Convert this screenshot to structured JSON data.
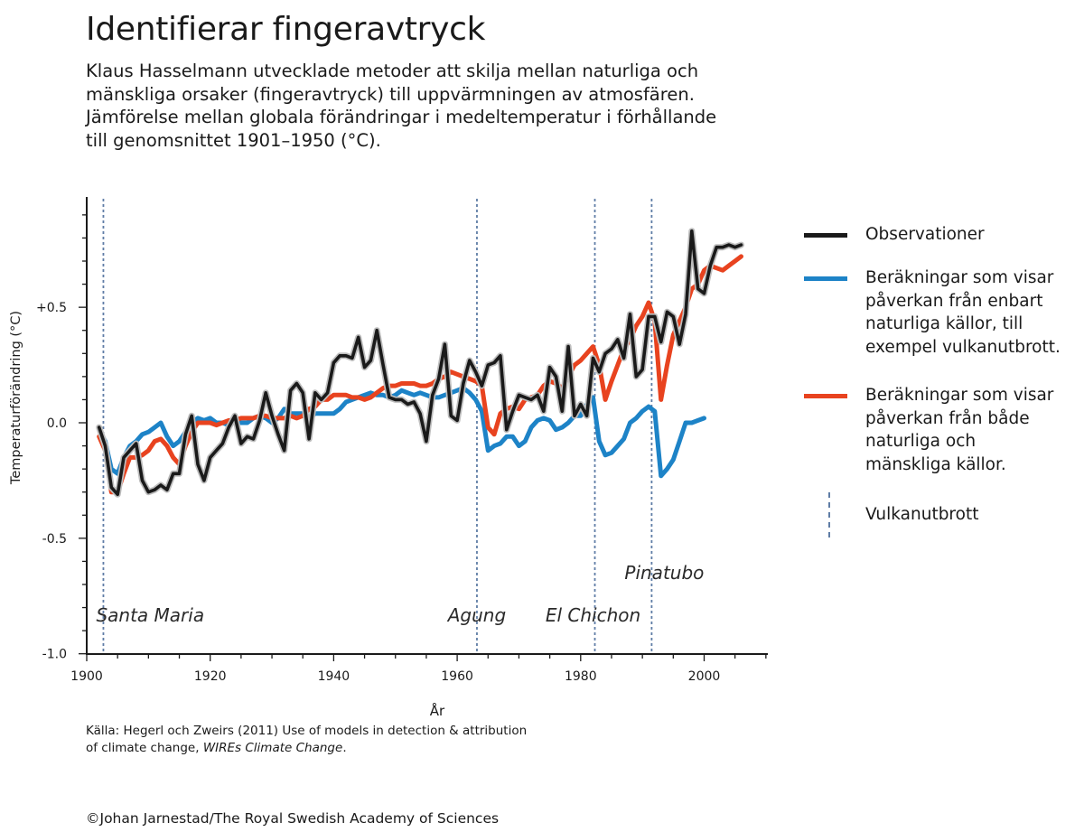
{
  "title": "Identifierar fingeravtryck",
  "subtitle_lines": [
    "Klaus Hasselmann utvecklade metoder att skilja mellan naturliga och",
    "mänskliga orsaker (fingeravtryck) till uppvärmningen av atmosfären.",
    "Jämförelse mellan globala förändringar i medeltemperatur i förhållande",
    "till genomsnittet 1901–1950 (°C)."
  ],
  "chart_data": {
    "type": "line",
    "ylabel": "Temperaturförändring (°C)",
    "xlabel": "År",
    "xlim": [
      1900,
      2011
    ],
    "ylim": [
      -1.0,
      0.9
    ],
    "x_ticks": [
      1900,
      1920,
      1940,
      1960,
      1980,
      2000
    ],
    "x_tick_labels": [
      "1900",
      "1920",
      "1940",
      "1960",
      "1980",
      "2000"
    ],
    "y_ticks": [
      0.5,
      0.0,
      -0.5,
      -1.0
    ],
    "y_tick_labels": [
      "+0.5",
      "0.0",
      "-0.5",
      "-1.0"
    ],
    "series": [
      {
        "name": "Observationer",
        "color": "#1a1a1a",
        "x": [
          1902,
          1903,
          1904,
          1905,
          1906,
          1907,
          1908,
          1909,
          1910,
          1911,
          1912,
          1913,
          1914,
          1915,
          1916,
          1917,
          1918,
          1919,
          1920,
          1921,
          1922,
          1923,
          1924,
          1925,
          1926,
          1927,
          1928,
          1929,
          1930,
          1931,
          1932,
          1933,
          1934,
          1935,
          1936,
          1937,
          1938,
          1939,
          1940,
          1941,
          1942,
          1943,
          1944,
          1945,
          1946,
          1947,
          1948,
          1949,
          1950,
          1951,
          1952,
          1953,
          1954,
          1955,
          1956,
          1957,
          1958,
          1959,
          1960,
          1961,
          1962,
          1963,
          1964,
          1965,
          1966,
          1967,
          1968,
          1969,
          1970,
          1971,
          1972,
          1973,
          1974,
          1975,
          1976,
          1977,
          1978,
          1979,
          1980,
          1981,
          1982,
          1983,
          1984,
          1985,
          1986,
          1987,
          1988,
          1989,
          1990,
          1991,
          1992,
          1993,
          1994,
          1995,
          1996,
          1997,
          1998,
          1999,
          2000,
          2001,
          2002,
          2003,
          2004,
          2005,
          2006
        ],
        "values": [
          -0.02,
          -0.1,
          -0.28,
          -0.31,
          -0.15,
          -0.12,
          -0.09,
          -0.25,
          -0.3,
          -0.29,
          -0.27,
          -0.29,
          -0.22,
          -0.22,
          -0.05,
          0.03,
          -0.18,
          -0.25,
          -0.15,
          -0.12,
          -0.09,
          -0.02,
          0.03,
          -0.09,
          -0.06,
          -0.07,
          0.01,
          0.13,
          0.03,
          -0.05,
          -0.12,
          0.14,
          0.17,
          0.13,
          -0.07,
          0.13,
          0.1,
          0.13,
          0.26,
          0.29,
          0.29,
          0.28,
          0.37,
          0.24,
          0.27,
          0.4,
          0.25,
          0.11,
          0.1,
          0.1,
          0.08,
          0.09,
          0.04,
          -0.08,
          0.12,
          0.19,
          0.34,
          0.03,
          0.01,
          0.17,
          0.27,
          0.22,
          0.16,
          0.25,
          0.26,
          0.29,
          -0.03,
          0.05,
          0.12,
          0.11,
          0.1,
          0.12,
          0.05,
          0.24,
          0.2,
          0.05,
          0.33,
          0.03,
          0.08,
          0.03,
          0.28,
          0.22,
          0.3,
          0.32,
          0.36,
          0.28,
          0.47,
          0.2,
          0.23,
          0.46,
          0.46,
          0.35,
          0.48,
          0.46,
          0.34,
          0.47,
          0.83,
          0.58,
          0.56,
          0.68,
          0.76,
          0.76,
          0.77,
          0.76,
          0.77
        ]
      },
      {
        "name": "Beräkningar som visar påverkan från enbart naturliga källor, till exempel vulkanutbrott.",
        "color": "#1d83c7",
        "x": [
          1902,
          1903,
          1904,
          1905,
          1906,
          1907,
          1908,
          1909,
          1910,
          1911,
          1912,
          1913,
          1914,
          1915,
          1916,
          1917,
          1918,
          1919,
          1920,
          1921,
          1922,
          1923,
          1924,
          1925,
          1926,
          1927,
          1928,
          1929,
          1930,
          1931,
          1932,
          1933,
          1934,
          1935,
          1936,
          1937,
          1938,
          1939,
          1940,
          1941,
          1942,
          1943,
          1944,
          1945,
          1946,
          1947,
          1948,
          1949,
          1950,
          1951,
          1952,
          1953,
          1954,
          1955,
          1956,
          1957,
          1958,
          1959,
          1960,
          1961,
          1962,
          1963,
          1964,
          1965,
          1966,
          1967,
          1968,
          1969,
          1970,
          1971,
          1972,
          1973,
          1974,
          1975,
          1976,
          1977,
          1978,
          1979,
          1980,
          1981,
          1982,
          1983,
          1984,
          1985,
          1986,
          1987,
          1988,
          1989,
          1990,
          1991,
          1992,
          1993,
          1994,
          1995,
          1996,
          1997,
          1998,
          1999,
          2000
        ],
        "values": [
          -0.03,
          -0.08,
          -0.2,
          -0.22,
          -0.15,
          -0.1,
          -0.08,
          -0.05,
          -0.04,
          -0.02,
          0.0,
          -0.06,
          -0.1,
          -0.08,
          -0.04,
          0.0,
          0.02,
          0.01,
          0.02,
          0.0,
          0.0,
          -0.01,
          0.01,
          0.0,
          0.0,
          0.02,
          0.03,
          0.02,
          0.0,
          0.02,
          0.06,
          0.04,
          0.04,
          0.04,
          0.02,
          0.04,
          0.04,
          0.04,
          0.04,
          0.06,
          0.09,
          0.1,
          0.11,
          0.12,
          0.13,
          0.12,
          0.12,
          0.11,
          0.12,
          0.14,
          0.13,
          0.12,
          0.13,
          0.12,
          0.11,
          0.11,
          0.12,
          0.13,
          0.14,
          0.15,
          0.13,
          0.1,
          0.05,
          -0.12,
          -0.1,
          -0.09,
          -0.06,
          -0.06,
          -0.1,
          -0.08,
          -0.02,
          0.01,
          0.02,
          0.01,
          -0.03,
          -0.02,
          0.0,
          0.03,
          0.03,
          0.08,
          0.11,
          -0.08,
          -0.14,
          -0.13,
          -0.1,
          -0.07,
          0.0,
          0.02,
          0.05,
          0.07,
          0.05,
          -0.23,
          -0.2,
          -0.16,
          -0.08,
          0.0,
          0.0,
          0.01,
          0.02
        ]
      },
      {
        "name": "Beräkningar som visar påverkan från både naturliga och mänskliga källor.",
        "color": "#e8431f",
        "x": [
          1902,
          1903,
          1904,
          1905,
          1906,
          1907,
          1908,
          1909,
          1910,
          1911,
          1912,
          1913,
          1914,
          1915,
          1916,
          1917,
          1918,
          1919,
          1920,
          1921,
          1922,
          1923,
          1924,
          1925,
          1926,
          1927,
          1928,
          1929,
          1930,
          1931,
          1932,
          1933,
          1934,
          1935,
          1936,
          1937,
          1938,
          1939,
          1940,
          1941,
          1942,
          1943,
          1944,
          1945,
          1946,
          1947,
          1948,
          1949,
          1950,
          1951,
          1952,
          1953,
          1954,
          1955,
          1956,
          1957,
          1958,
          1959,
          1960,
          1961,
          1962,
          1963,
          1964,
          1965,
          1966,
          1967,
          1968,
          1969,
          1970,
          1971,
          1972,
          1973,
          1974,
          1975,
          1976,
          1977,
          1978,
          1979,
          1980,
          1981,
          1982,
          1983,
          1984,
          1985,
          1986,
          1987,
          1988,
          1989,
          1990,
          1991,
          1992,
          1993,
          1994,
          1995,
          1996,
          1997,
          1998,
          1999,
          2000,
          2001,
          2002,
          2003,
          2004,
          2005,
          2006
        ],
        "values": [
          -0.06,
          -0.12,
          -0.3,
          -0.3,
          -0.22,
          -0.15,
          -0.15,
          -0.14,
          -0.12,
          -0.08,
          -0.07,
          -0.1,
          -0.15,
          -0.18,
          -0.1,
          -0.04,
          0.0,
          0.0,
          0.0,
          -0.01,
          0.0,
          0.01,
          0.01,
          0.02,
          0.02,
          0.02,
          0.03,
          0.03,
          0.02,
          0.02,
          0.02,
          0.03,
          0.02,
          0.03,
          0.06,
          0.07,
          0.1,
          0.1,
          0.12,
          0.12,
          0.12,
          0.11,
          0.11,
          0.1,
          0.11,
          0.13,
          0.15,
          0.16,
          0.16,
          0.17,
          0.17,
          0.17,
          0.16,
          0.16,
          0.17,
          0.19,
          0.2,
          0.22,
          0.21,
          0.2,
          0.19,
          0.18,
          0.16,
          -0.02,
          -0.05,
          0.04,
          0.06,
          0.07,
          0.06,
          0.1,
          0.11,
          0.12,
          0.16,
          0.18,
          0.17,
          0.15,
          0.2,
          0.25,
          0.27,
          0.3,
          0.33,
          0.25,
          0.1,
          0.18,
          0.25,
          0.32,
          0.36,
          0.42,
          0.46,
          0.52,
          0.44,
          0.1,
          0.25,
          0.38,
          0.44,
          0.5,
          0.58,
          0.6,
          0.66,
          0.68,
          0.67,
          0.66,
          0.68,
          0.7,
          0.72
        ]
      }
    ],
    "volcanoes": [
      {
        "name": "Santa Maria",
        "year": 1902.7
      },
      {
        "name": "Agung",
        "year": 1963.2
      },
      {
        "name": "El Chichon",
        "year": 1982.3
      },
      {
        "name": "Pinatubo",
        "year": 1991.5
      }
    ],
    "grid": false,
    "legend_position": "right"
  },
  "legend": {
    "items": [
      {
        "key": "observations",
        "color": "#1a1a1a",
        "lines": [
          "Observationer"
        ]
      },
      {
        "key": "natural",
        "color": "#1d83c7",
        "lines": [
          "Beräkningar som visar",
          "påverkan från enbart",
          "naturliga källor, till",
          "exempel vulkanutbrott."
        ]
      },
      {
        "key": "combined",
        "color": "#e8431f",
        "lines": [
          "Beräkningar som visar",
          "påverkan från både",
          "naturliga och",
          "mänskliga källor."
        ]
      }
    ],
    "volcano_label": "Vulkanutbrott",
    "volcano_color": "#5f7da6"
  },
  "source": {
    "line1": "Källa: Hegerl och Zweirs (2011) Use of models in detection & attribution",
    "line2_prefix": "of climate change, ",
    "line2_journal": "WIREs Climate Change",
    "line2_suffix": "."
  },
  "copyright": "©Johan Jarnestad/The Royal Swedish Academy of Sciences"
}
